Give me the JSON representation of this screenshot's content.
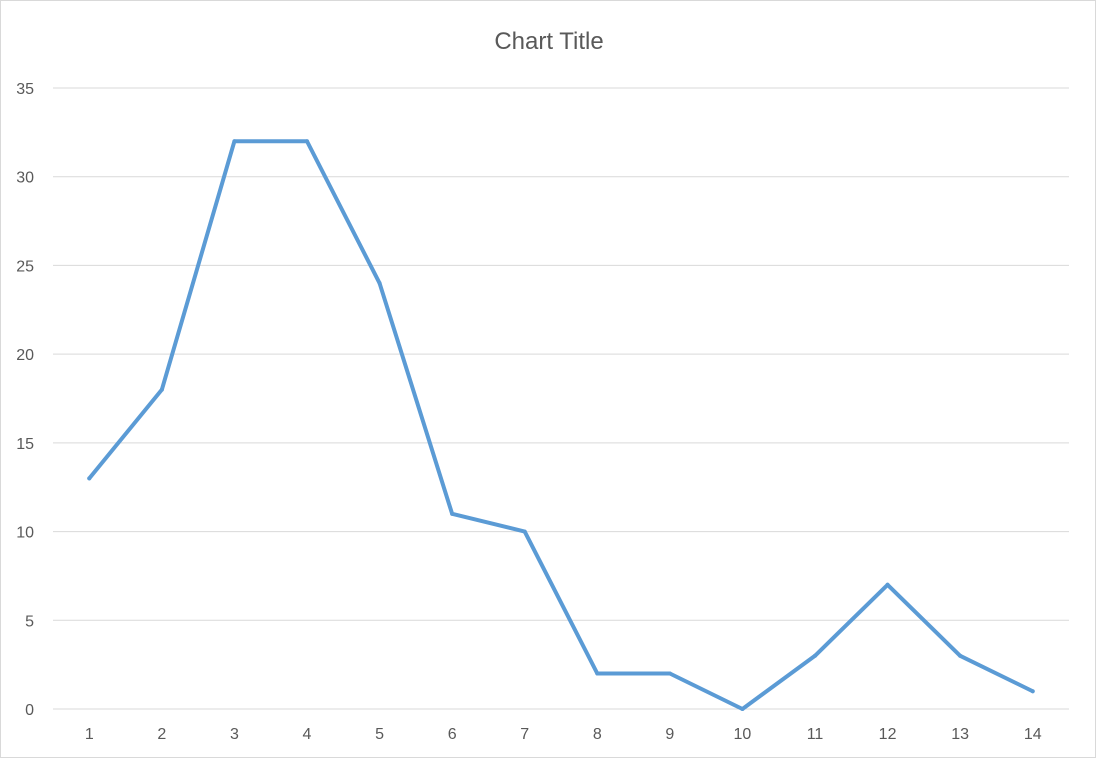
{
  "chart_data": {
    "type": "line",
    "title": "Chart Title",
    "xlabel": "",
    "ylabel": "",
    "categories": [
      "1",
      "2",
      "3",
      "4",
      "5",
      "6",
      "7",
      "8",
      "9",
      "10",
      "11",
      "12",
      "13",
      "14"
    ],
    "series": [
      {
        "values": [
          13,
          18,
          32,
          32,
          24,
          11,
          10,
          2,
          2,
          0,
          3,
          7,
          3,
          1
        ],
        "color": "#5b9bd5"
      }
    ],
    "ylim": [
      0,
      35
    ],
    "yticks": [
      0,
      5,
      10,
      15,
      20,
      25,
      30,
      35
    ],
    "grid": true,
    "legend": "none"
  }
}
